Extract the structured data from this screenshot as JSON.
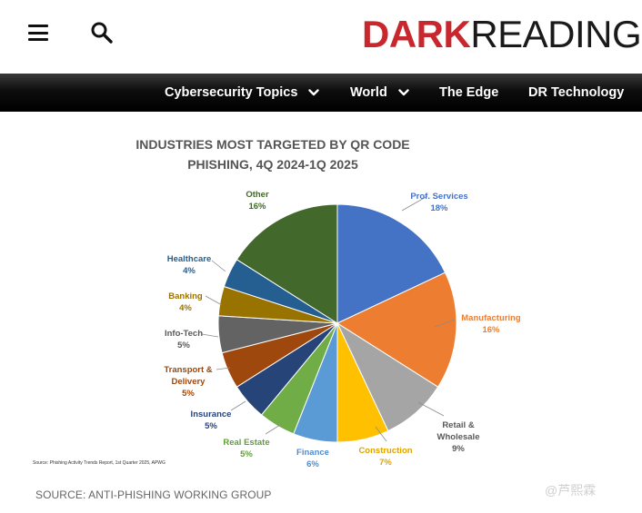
{
  "header": {
    "logo_dark": "DARK",
    "logo_reading": "READING"
  },
  "nav": {
    "items": [
      {
        "label": "Cybersecurity Topics"
      },
      {
        "label": "World"
      },
      {
        "label": "The Edge"
      },
      {
        "label": "DR Technology"
      }
    ]
  },
  "figure": {
    "small_source": "Source: Phishing Activity Trends Report, 1st Quarter 2025, APWG"
  },
  "chart_data": {
    "type": "pie",
    "title_line1": "INDUSTRIES MOST TARGETED BY QR CODE",
    "title_line2": "PHISHING, 4Q 2024-1Q 2025",
    "slices": [
      {
        "label": "Prof. Services",
        "value_text": "18%",
        "value": 18,
        "color": "#4472c4"
      },
      {
        "label": "Manufacturing",
        "value_text": "16%",
        "value": 16,
        "color": "#ed7d31"
      },
      {
        "label": "Retail & Wholesale",
        "value_text": "9%",
        "value": 9,
        "color": "#a5a5a5"
      },
      {
        "label": "Construction",
        "value_text": "7%",
        "value": 7,
        "color": "#ffc000"
      },
      {
        "label": "Finance",
        "value_text": "6%",
        "value": 6,
        "color": "#5b9bd5"
      },
      {
        "label": "Real Estate",
        "value_text": "5%",
        "value": 5,
        "color": "#70ad47"
      },
      {
        "label": "Insurance",
        "value_text": "5%",
        "value": 5,
        "color": "#264478"
      },
      {
        "label": "Transport & Delivery",
        "value_text": "5%",
        "value": 5,
        "color": "#9e480e"
      },
      {
        "label": "Info-Tech",
        "value_text": "5%",
        "value": 5,
        "color": "#636363"
      },
      {
        "label": "Banking",
        "value_text": "4%",
        "value": 4,
        "color": "#997300"
      },
      {
        "label": "Healthcare",
        "value_text": "4%",
        "value": 4,
        "color": "#255e91"
      },
      {
        "label": "Other",
        "value_text": "16%",
        "value": 16,
        "color": "#43682b"
      }
    ]
  },
  "caption": "SOURCE: ANTI-PHISHING WORKING GROUP",
  "watermark": "@芦熙霖"
}
